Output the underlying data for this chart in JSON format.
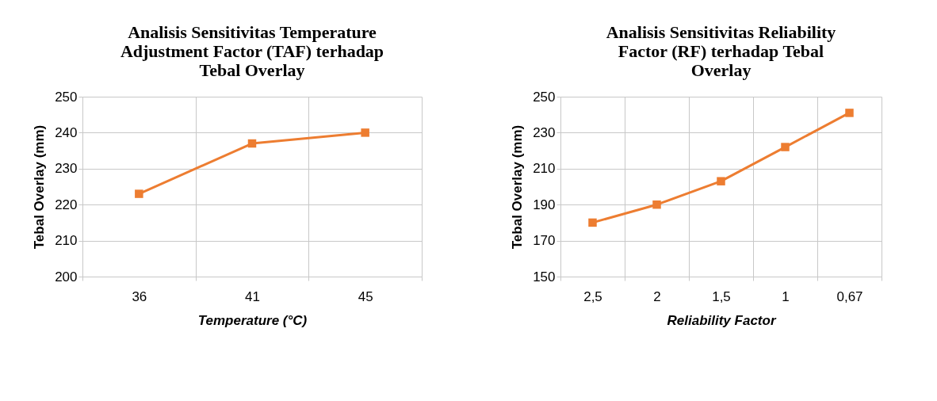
{
  "chart_data": [
    {
      "type": "line",
      "title": "Analisis Sensitivitas Temperature Adjustment Factor (TAF) terhadap Tebal Overlay",
      "xlabel": "Temperature (°C)",
      "ylabel": "Tebal Overlay (mm)",
      "categories": [
        "36",
        "41",
        "45"
      ],
      "series": [
        {
          "color": "#ed7d31",
          "values": [
            223,
            237,
            240
          ]
        }
      ],
      "ylim": [
        200,
        250
      ],
      "yticks": [
        200,
        210,
        220,
        230,
        240,
        250
      ],
      "grid": true,
      "marker": "square"
    },
    {
      "type": "line",
      "title": "Analisis Sensitivitas Reliability Factor (RF) terhadap Tebal Overlay",
      "xlabel": "Reliability Factor",
      "ylabel": "Tebal Overlay (mm)",
      "categories": [
        "2,5",
        "2",
        "1,5",
        "1",
        "0,67"
      ],
      "series": [
        {
          "color": "#ed7d31",
          "values": [
            180,
            190,
            203,
            222,
            241
          ]
        }
      ],
      "ylim": [
        150,
        250
      ],
      "yticks": [
        150,
        170,
        190,
        210,
        230,
        250
      ],
      "grid": true,
      "marker": "square"
    }
  ]
}
